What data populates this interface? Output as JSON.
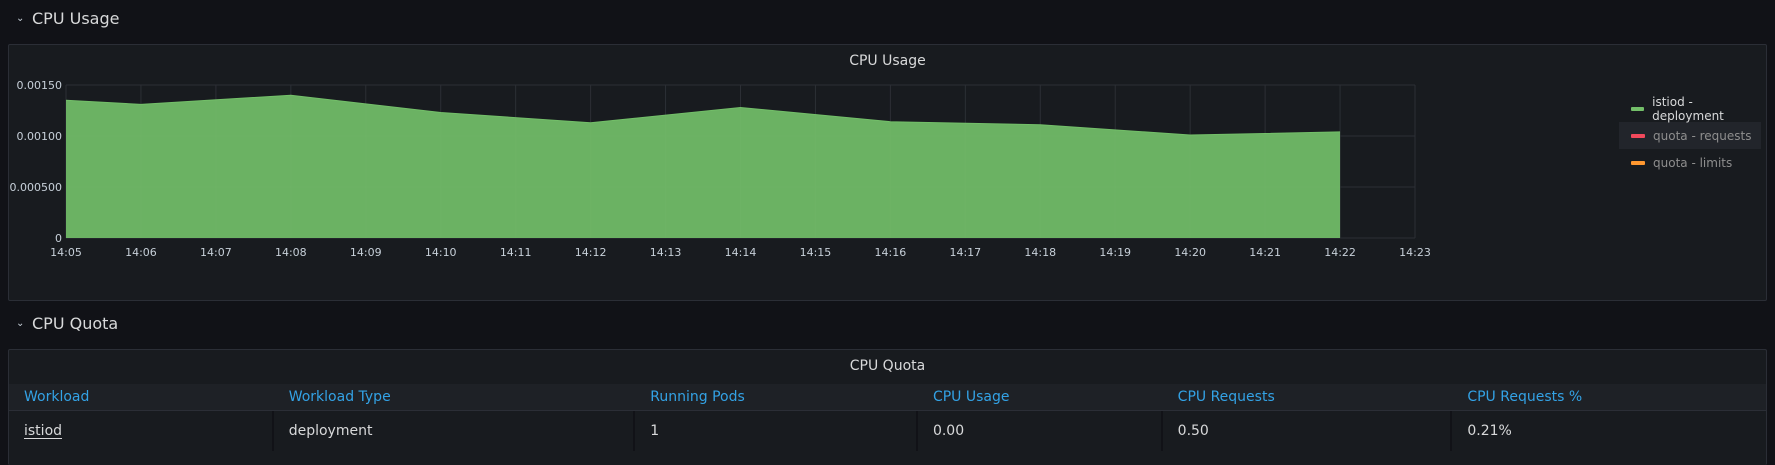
{
  "rows": {
    "cpu_usage": {
      "title": "CPU Usage"
    },
    "cpu_quota": {
      "title": "CPU Quota"
    }
  },
  "usage_panel": {
    "title": "CPU Usage",
    "legend": [
      {
        "label": "istiod - deployment",
        "color": "#73bf69",
        "state": "active"
      },
      {
        "label": "quota - requests",
        "color": "#f2495c",
        "state": "dim"
      },
      {
        "label": "quota - limits",
        "color": "#ff9830",
        "state": "dim"
      }
    ]
  },
  "chart_data": {
    "type": "area",
    "title": "CPU Usage",
    "x_ticks": [
      "14:05",
      "14:06",
      "14:07",
      "14:08",
      "14:09",
      "14:10",
      "14:11",
      "14:12",
      "14:13",
      "14:14",
      "14:15",
      "14:16",
      "14:17",
      "14:18",
      "14:19",
      "14:20",
      "14:21",
      "14:22",
      "14:23"
    ],
    "y_ticks": [
      "0",
      "0.000500",
      "0.00100",
      "0.00150"
    ],
    "ylim": [
      0,
      0.0015
    ],
    "xlim": [
      "14:05",
      "14:23"
    ],
    "series": [
      {
        "name": "istiod - deployment",
        "color": "#73bf69",
        "x": [
          "14:05",
          "14:06",
          "14:08",
          "14:10",
          "14:12",
          "14:14",
          "14:16",
          "14:18",
          "14:20",
          "14:22"
        ],
        "values": [
          0.00135,
          0.00131,
          0.0014,
          0.00123,
          0.00113,
          0.00128,
          0.00114,
          0.00111,
          0.00101,
          0.00104
        ]
      },
      {
        "name": "quota - requests",
        "color": "#f2495c",
        "x": [],
        "values": []
      },
      {
        "name": "quota - limits",
        "color": "#ff9830",
        "x": [],
        "values": []
      }
    ],
    "grid": true,
    "legend_position": "right"
  },
  "quota_panel": {
    "title": "CPU Quota",
    "columns": [
      "Workload",
      "Workload Type",
      "Running Pods",
      "CPU Usage",
      "CPU Requests",
      "CPU Requests %"
    ],
    "rows": [
      {
        "workload": "istiod",
        "type": "deployment",
        "pods": "1",
        "usage": "0.00",
        "requests": "0.50",
        "requests_pct": "0.21%"
      }
    ]
  }
}
